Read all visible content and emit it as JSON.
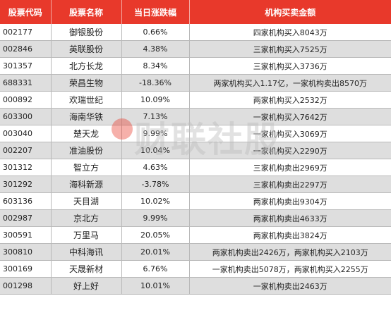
{
  "headers": {
    "code": "股票代码",
    "name": "股票名称",
    "change": "当日涨跌幅",
    "amount": "机构买卖金额"
  },
  "rows": [
    {
      "code": "002177",
      "name": "御银股份",
      "change": "0.66%",
      "amount": "四家机构买入8043万"
    },
    {
      "code": "002846",
      "name": "英联股份",
      "change": "4.38%",
      "amount": "三家机构买入7525万"
    },
    {
      "code": "301357",
      "name": "北方长龙",
      "change": "8.34%",
      "amount": "三家机构买入3736万"
    },
    {
      "code": "688331",
      "name": "荣昌生物",
      "change": "-18.36%",
      "amount": "两家机构买入1.17亿，一家机构卖出8570万"
    },
    {
      "code": "000892",
      "name": "欢瑞世纪",
      "change": "10.09%",
      "amount": "两家机构买入2532万"
    },
    {
      "code": "603300",
      "name": "海南华铁",
      "change": "7.13%",
      "amount": "一家机构买入7642万"
    },
    {
      "code": "003040",
      "name": "楚天龙",
      "change": "9.99%",
      "amount": "一家机构买入3069万"
    },
    {
      "code": "002207",
      "name": "准油股份",
      "change": "10.04%",
      "amount": "一家机构买入2290万"
    },
    {
      "code": "301312",
      "name": "智立方",
      "change": "4.63%",
      "amount": "三家机构卖出2969万"
    },
    {
      "code": "301292",
      "name": "海科新源",
      "change": "-3.78%",
      "amount": "三家机构卖出2297万"
    },
    {
      "code": "603136",
      "name": "天目湖",
      "change": "10.02%",
      "amount": "两家机构卖出9304万"
    },
    {
      "code": "002987",
      "name": "京北方",
      "change": "9.99%",
      "amount": "两家机构卖出4633万"
    },
    {
      "code": "300591",
      "name": "万里马",
      "change": "20.05%",
      "amount": "两家机构卖出3824万"
    },
    {
      "code": "300810",
      "name": "中科海讯",
      "change": "20.01%",
      "amount": "两家机构卖出2426万，两家机构买入2103万"
    },
    {
      "code": "300169",
      "name": "天晟新材",
      "change": "6.76%",
      "amount": "一家机构卖出5078万，两家机构买入2255万"
    },
    {
      "code": "001298",
      "name": "好上好",
      "change": "10.01%",
      "amount": "一家机构卖出2463万"
    }
  ],
  "colors": {
    "header_bg": "#e8392b",
    "header_text": "#ffffff",
    "stripe": "#dedede"
  },
  "watermark": "财联社股"
}
